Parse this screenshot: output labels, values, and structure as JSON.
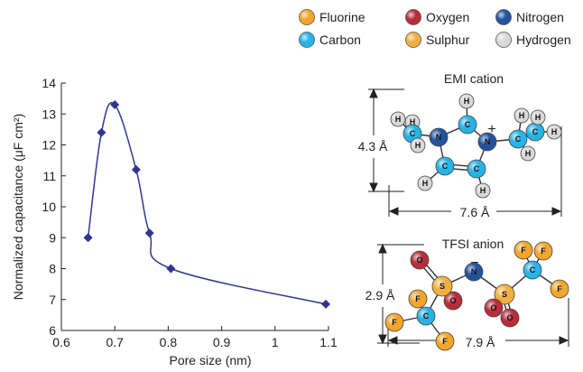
{
  "colors": {
    "line": "#2b3a8f",
    "marker": "#2e3590",
    "fluorine": "#f4a62a",
    "oxygen": "#b82d3a",
    "nitrogen": "#23539e",
    "carbon": "#27b3e6",
    "sulphur": "#f2b040",
    "hydrogen": "#d8d8d8"
  },
  "legend": {
    "items": [
      {
        "label": "Fluorine",
        "color": "#f4a62a"
      },
      {
        "label": "Oxygen",
        "color": "#b82d3a"
      },
      {
        "label": "Nitrogen",
        "color": "#23539e"
      },
      {
        "label": "Carbon",
        "color": "#27b3e6"
      },
      {
        "label": "Sulphur",
        "color": "#f2b040"
      },
      {
        "label": "Hydrogen",
        "color": "#d8d8d8"
      }
    ]
  },
  "chart_data": {
    "type": "line",
    "xlabel": "Pore size (nm)",
    "ylabel": "Normalized capacitance (μF cm²)",
    "xlim": [
      0.6,
      1.1
    ],
    "ylim": [
      6,
      14
    ],
    "x_ticks": [
      "0.6",
      "0.7",
      "0.8",
      "0.9",
      "1",
      "1.1"
    ],
    "y_ticks": [
      "6",
      "7",
      "8",
      "9",
      "10",
      "11",
      "12",
      "13",
      "14"
    ],
    "grid": false,
    "marker": "diamond",
    "series": [
      {
        "x": [
          0.65,
          0.675,
          0.7,
          0.74,
          0.765,
          0.805,
          1.095
        ],
        "y": [
          9.0,
          12.4,
          13.3,
          11.2,
          9.15,
          8.0,
          6.85
        ]
      }
    ]
  },
  "molecules": {
    "emi": {
      "title": "EMI cation",
      "height_label": "4.3 Å",
      "width_label": "7.6 Å",
      "charge": "+",
      "atoms": [
        "H",
        "H",
        "C",
        "H",
        "C",
        "N",
        "N",
        "C",
        "C",
        "H",
        "H",
        "C",
        "C",
        "H",
        "H",
        "H",
        "H",
        "H"
      ]
    },
    "tfsi": {
      "title": "TFSI anion",
      "height_label": "2.9 Å",
      "width_label": "7.9 Å",
      "charge": "−",
      "atoms": [
        "O",
        "O",
        "F",
        "F",
        "F",
        "C",
        "S",
        "S",
        "O",
        "O",
        "N",
        "C",
        "F",
        "F",
        "F"
      ]
    }
  }
}
